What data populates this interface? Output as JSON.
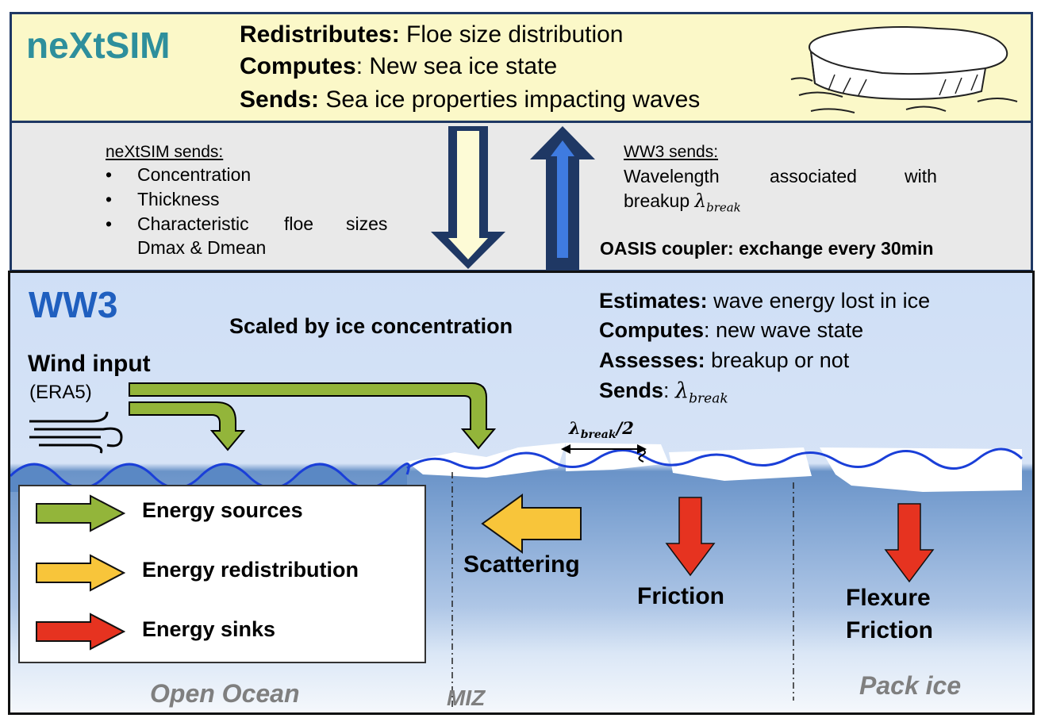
{
  "colors": {
    "nextsim_bg": "#fbf8c8",
    "coupler_bg": "#e9e9e9",
    "ww3_bg": "#cfdff6",
    "frame": "#1f3864",
    "nextsim_title": "#2e8f9c",
    "ww3_title": "#1f5fbf",
    "source": "#93b53a",
    "redistribution": "#f8c53a",
    "sink": "#e63320",
    "wave_line": "#1a3fd8"
  },
  "icons": [
    "ice-floe-icon",
    "wind-icon",
    "down-arrow-icon",
    "up-arrow-icon",
    "wave-icon"
  ],
  "nextsim": {
    "title": "neXtSIM",
    "lines": [
      {
        "bold": "Redistributes:",
        "text": " Floe size distribution"
      },
      {
        "bold": "Computes",
        "text": ": New sea ice state"
      },
      {
        "bold": "Sends:",
        "text": " Sea ice properties impacting waves"
      }
    ]
  },
  "coupler": {
    "nextsim_sends_title": "neXtSIM sends:",
    "nextsim_items": [
      "Concentration",
      "Thickness",
      "Characteristic",
      "floe",
      "sizes",
      "Dmax & Dmean"
    ],
    "bullet": "•",
    "ww3_sends_title": "WW3 sends:",
    "ww3_text_1": [
      "Wavelength",
      "associated",
      "with"
    ],
    "ww3_text_2": "breakup ",
    "lambda": "λ",
    "break_sub": "break",
    "oasis": "OASIS coupler: exchange every 30min"
  },
  "ww3": {
    "title": "WW3",
    "scaled": "Scaled by ice concentration",
    "wind_input": "Wind input",
    "era5": "(ERA5)",
    "lines": [
      {
        "bold": "Estimates:",
        "text": " wave energy lost in ice"
      },
      {
        "bold": "Computes",
        "text": ": new wave state"
      },
      {
        "bold": "Assesses:",
        "text": " breakup or not"
      },
      {
        "bold": "Sends",
        "text": ": "
      }
    ],
    "half_label_tail": "/2",
    "scattering": "Scattering",
    "friction": "Friction",
    "flexure": "Flexure",
    "friction2": "Friction",
    "open_ocean": "Open Ocean",
    "miz": "MIZ",
    "pack_ice": "Pack ice"
  },
  "legend": [
    {
      "label": "Energy sources",
      "color": "#93b53a"
    },
    {
      "label": "Energy redistribution",
      "color": "#f8c53a"
    },
    {
      "label": "Energy sinks",
      "color": "#e63320"
    }
  ]
}
